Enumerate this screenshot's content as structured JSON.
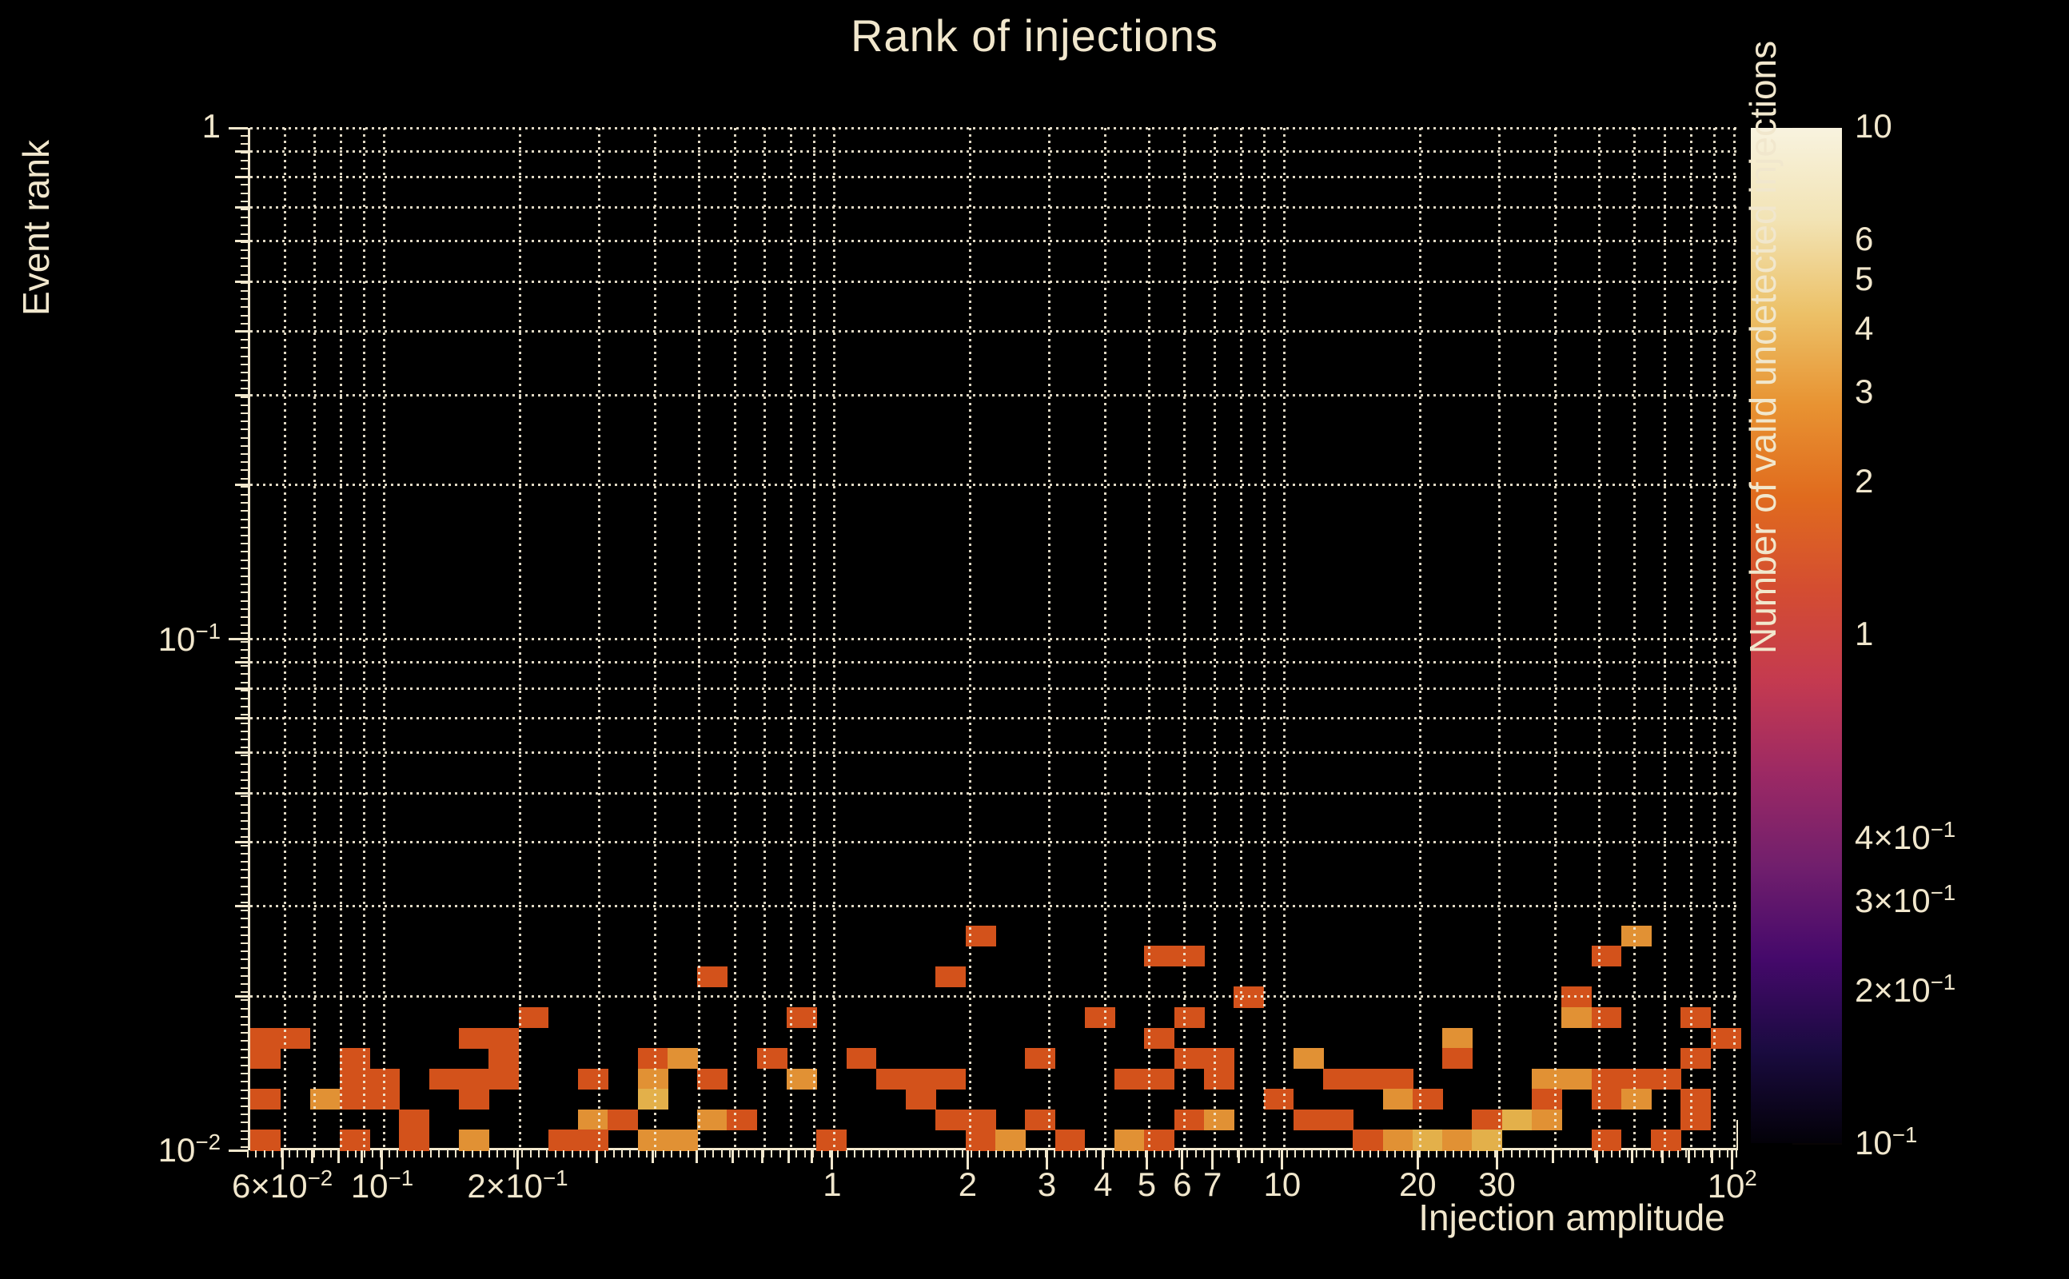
{
  "title": "Rank of injections",
  "axes": {
    "x_label": "Injection amplitude",
    "y_label": "Event rank"
  },
  "colorbar": {
    "label": "Number of valid undetected injections",
    "tick_labels": [
      {
        "v": 10,
        "m": "10"
      },
      {
        "v": 6,
        "m": "6"
      },
      {
        "v": 5,
        "m": "5"
      },
      {
        "v": 4,
        "m": "4"
      },
      {
        "v": 3,
        "m": "3"
      },
      {
        "v": 2,
        "m": "2"
      },
      {
        "v": 1,
        "m": "1"
      },
      {
        "v": 0.4,
        "m": "4×10",
        "e": "−1"
      },
      {
        "v": 0.3,
        "m": "3×10",
        "e": "−1"
      },
      {
        "v": 0.2,
        "m": "2×10",
        "e": "−1"
      },
      {
        "v": 0.1,
        "m": "10",
        "e": "−1"
      }
    ],
    "minor_tick_values": [
      9,
      8,
      7,
      0.9,
      0.8,
      0.7,
      0.6,
      0.5
    ],
    "gradient_stops_bottom_to_top": [
      "#030108",
      "#1a0b40",
      "#45096b",
      "#711f6d",
      "#9c2964",
      "#c43a50",
      "#d44d31",
      "#e06b1e",
      "#e89332",
      "#ecc168",
      "#f2e3b4",
      "#f8f3df"
    ]
  },
  "colors": {
    "background": "#000000",
    "text": "#f1e7cd",
    "grid": "#f3ead4",
    "spine": "#f1e7cd",
    "value_1": "#d3521b",
    "value_2": "#e19134",
    "value_3": "#e3b04a"
  },
  "chart_data": {
    "type": "heatmap",
    "title": "Rank of injections",
    "xlabel": "Injection amplitude",
    "ylabel": "Event rank",
    "colorbar_label": "Number of valid undetected injections",
    "x_scale": "log",
    "y_scale": "log",
    "color_scale": "log",
    "x_range": [
      0.0503,
      103
    ],
    "y_range": [
      0.01,
      1
    ],
    "color_range": [
      0.1,
      10
    ],
    "n_cols": 50,
    "n_rows": 50,
    "x_tick_labels": [
      {
        "v": 0.06,
        "m": "6×10",
        "e": "−2"
      },
      {
        "v": 0.1,
        "m": "10",
        "e": "−1"
      },
      {
        "v": 0.2,
        "m": "2×10",
        "e": "−1"
      },
      {
        "v": 1,
        "m": "1"
      },
      {
        "v": 2,
        "m": "2"
      },
      {
        "v": 3,
        "m": "3"
      },
      {
        "v": 4,
        "m": "4"
      },
      {
        "v": 5,
        "m": "5"
      },
      {
        "v": 6,
        "m": "6"
      },
      {
        "v": 7,
        "m": "7"
      },
      {
        "v": 10,
        "m": "10"
      },
      {
        "v": 20,
        "m": "20"
      },
      {
        "v": 30,
        "m": "30"
      },
      {
        "v": 100,
        "m": "10",
        "e": "2"
      }
    ],
    "y_tick_labels": [
      {
        "v": 1,
        "m": "1"
      },
      {
        "v": 0.1,
        "m": "10",
        "e": "−1"
      },
      {
        "v": 0.01,
        "m": "10",
        "e": "−2"
      }
    ],
    "cells_col_row_value": [
      [
        0,
        5,
        1
      ],
      [
        0,
        4,
        1
      ],
      [
        0,
        2,
        1
      ],
      [
        0,
        0,
        1
      ],
      [
        1,
        5,
        1
      ],
      [
        2,
        2,
        2
      ],
      [
        3,
        4,
        1
      ],
      [
        3,
        3,
        1
      ],
      [
        3,
        2,
        1
      ],
      [
        3,
        0,
        1
      ],
      [
        4,
        3,
        1
      ],
      [
        4,
        2,
        1
      ],
      [
        5,
        1,
        1
      ],
      [
        5,
        0,
        1
      ],
      [
        6,
        3,
        1
      ],
      [
        7,
        5,
        1
      ],
      [
        7,
        3,
        1
      ],
      [
        7,
        2,
        1
      ],
      [
        7,
        0,
        2
      ],
      [
        8,
        5,
        1
      ],
      [
        8,
        4,
        1
      ],
      [
        8,
        3,
        1
      ],
      [
        9,
        6,
        1
      ],
      [
        10,
        0,
        1
      ],
      [
        11,
        3,
        1
      ],
      [
        11,
        1,
        2
      ],
      [
        11,
        0,
        1
      ],
      [
        12,
        1,
        1
      ],
      [
        13,
        4,
        1
      ],
      [
        13,
        3,
        2
      ],
      [
        13,
        2,
        3
      ],
      [
        13,
        0,
        2
      ],
      [
        14,
        4,
        2
      ],
      [
        14,
        0,
        2
      ],
      [
        15,
        8,
        1
      ],
      [
        15,
        3,
        1
      ],
      [
        15,
        1,
        2
      ],
      [
        16,
        1,
        1
      ],
      [
        17,
        4,
        1
      ],
      [
        18,
        6,
        1
      ],
      [
        18,
        3,
        2
      ],
      [
        19,
        0,
        1
      ],
      [
        20,
        4,
        1
      ],
      [
        21,
        3,
        1
      ],
      [
        22,
        3,
        1
      ],
      [
        22,
        2,
        1
      ],
      [
        23,
        8,
        1
      ],
      [
        23,
        3,
        1
      ],
      [
        23,
        1,
        1
      ],
      [
        24,
        10,
        1
      ],
      [
        24,
        1,
        1
      ],
      [
        24,
        0,
        1
      ],
      [
        25,
        0,
        2
      ],
      [
        26,
        4,
        1
      ],
      [
        26,
        1,
        1
      ],
      [
        27,
        0,
        1
      ],
      [
        28,
        6,
        1
      ],
      [
        29,
        3,
        1
      ],
      [
        29,
        0,
        2
      ],
      [
        30,
        9,
        1
      ],
      [
        30,
        5,
        1
      ],
      [
        30,
        3,
        1
      ],
      [
        30,
        0,
        1
      ],
      [
        31,
        9,
        1
      ],
      [
        31,
        6,
        1
      ],
      [
        31,
        4,
        1
      ],
      [
        31,
        1,
        1
      ],
      [
        32,
        4,
        1
      ],
      [
        32,
        3,
        1
      ],
      [
        32,
        1,
        2
      ],
      [
        33,
        7,
        1
      ],
      [
        34,
        2,
        1
      ],
      [
        35,
        4,
        2
      ],
      [
        35,
        1,
        1
      ],
      [
        36,
        3,
        1
      ],
      [
        36,
        1,
        1
      ],
      [
        37,
        3,
        1
      ],
      [
        37,
        0,
        1
      ],
      [
        38,
        3,
        1
      ],
      [
        38,
        2,
        2
      ],
      [
        38,
        0,
        2
      ],
      [
        39,
        2,
        1
      ],
      [
        39,
        0,
        3
      ],
      [
        40,
        5,
        2
      ],
      [
        40,
        4,
        1
      ],
      [
        40,
        0,
        2
      ],
      [
        41,
        1,
        1
      ],
      [
        41,
        0,
        3
      ],
      [
        42,
        1,
        3
      ],
      [
        43,
        3,
        2
      ],
      [
        43,
        2,
        1
      ],
      [
        43,
        1,
        2
      ],
      [
        44,
        7,
        1
      ],
      [
        44,
        6,
        2
      ],
      [
        44,
        3,
        2
      ],
      [
        45,
        9,
        1
      ],
      [
        45,
        6,
        1
      ],
      [
        45,
        3,
        1
      ],
      [
        45,
        2,
        1
      ],
      [
        45,
        0,
        1
      ],
      [
        46,
        10,
        2
      ],
      [
        46,
        3,
        1
      ],
      [
        46,
        2,
        2
      ],
      [
        47,
        3,
        1
      ],
      [
        47,
        0,
        1
      ],
      [
        48,
        6,
        1
      ],
      [
        48,
        4,
        1
      ],
      [
        48,
        2,
        1
      ],
      [
        48,
        1,
        1
      ],
      [
        49,
        5,
        1
      ]
    ]
  }
}
